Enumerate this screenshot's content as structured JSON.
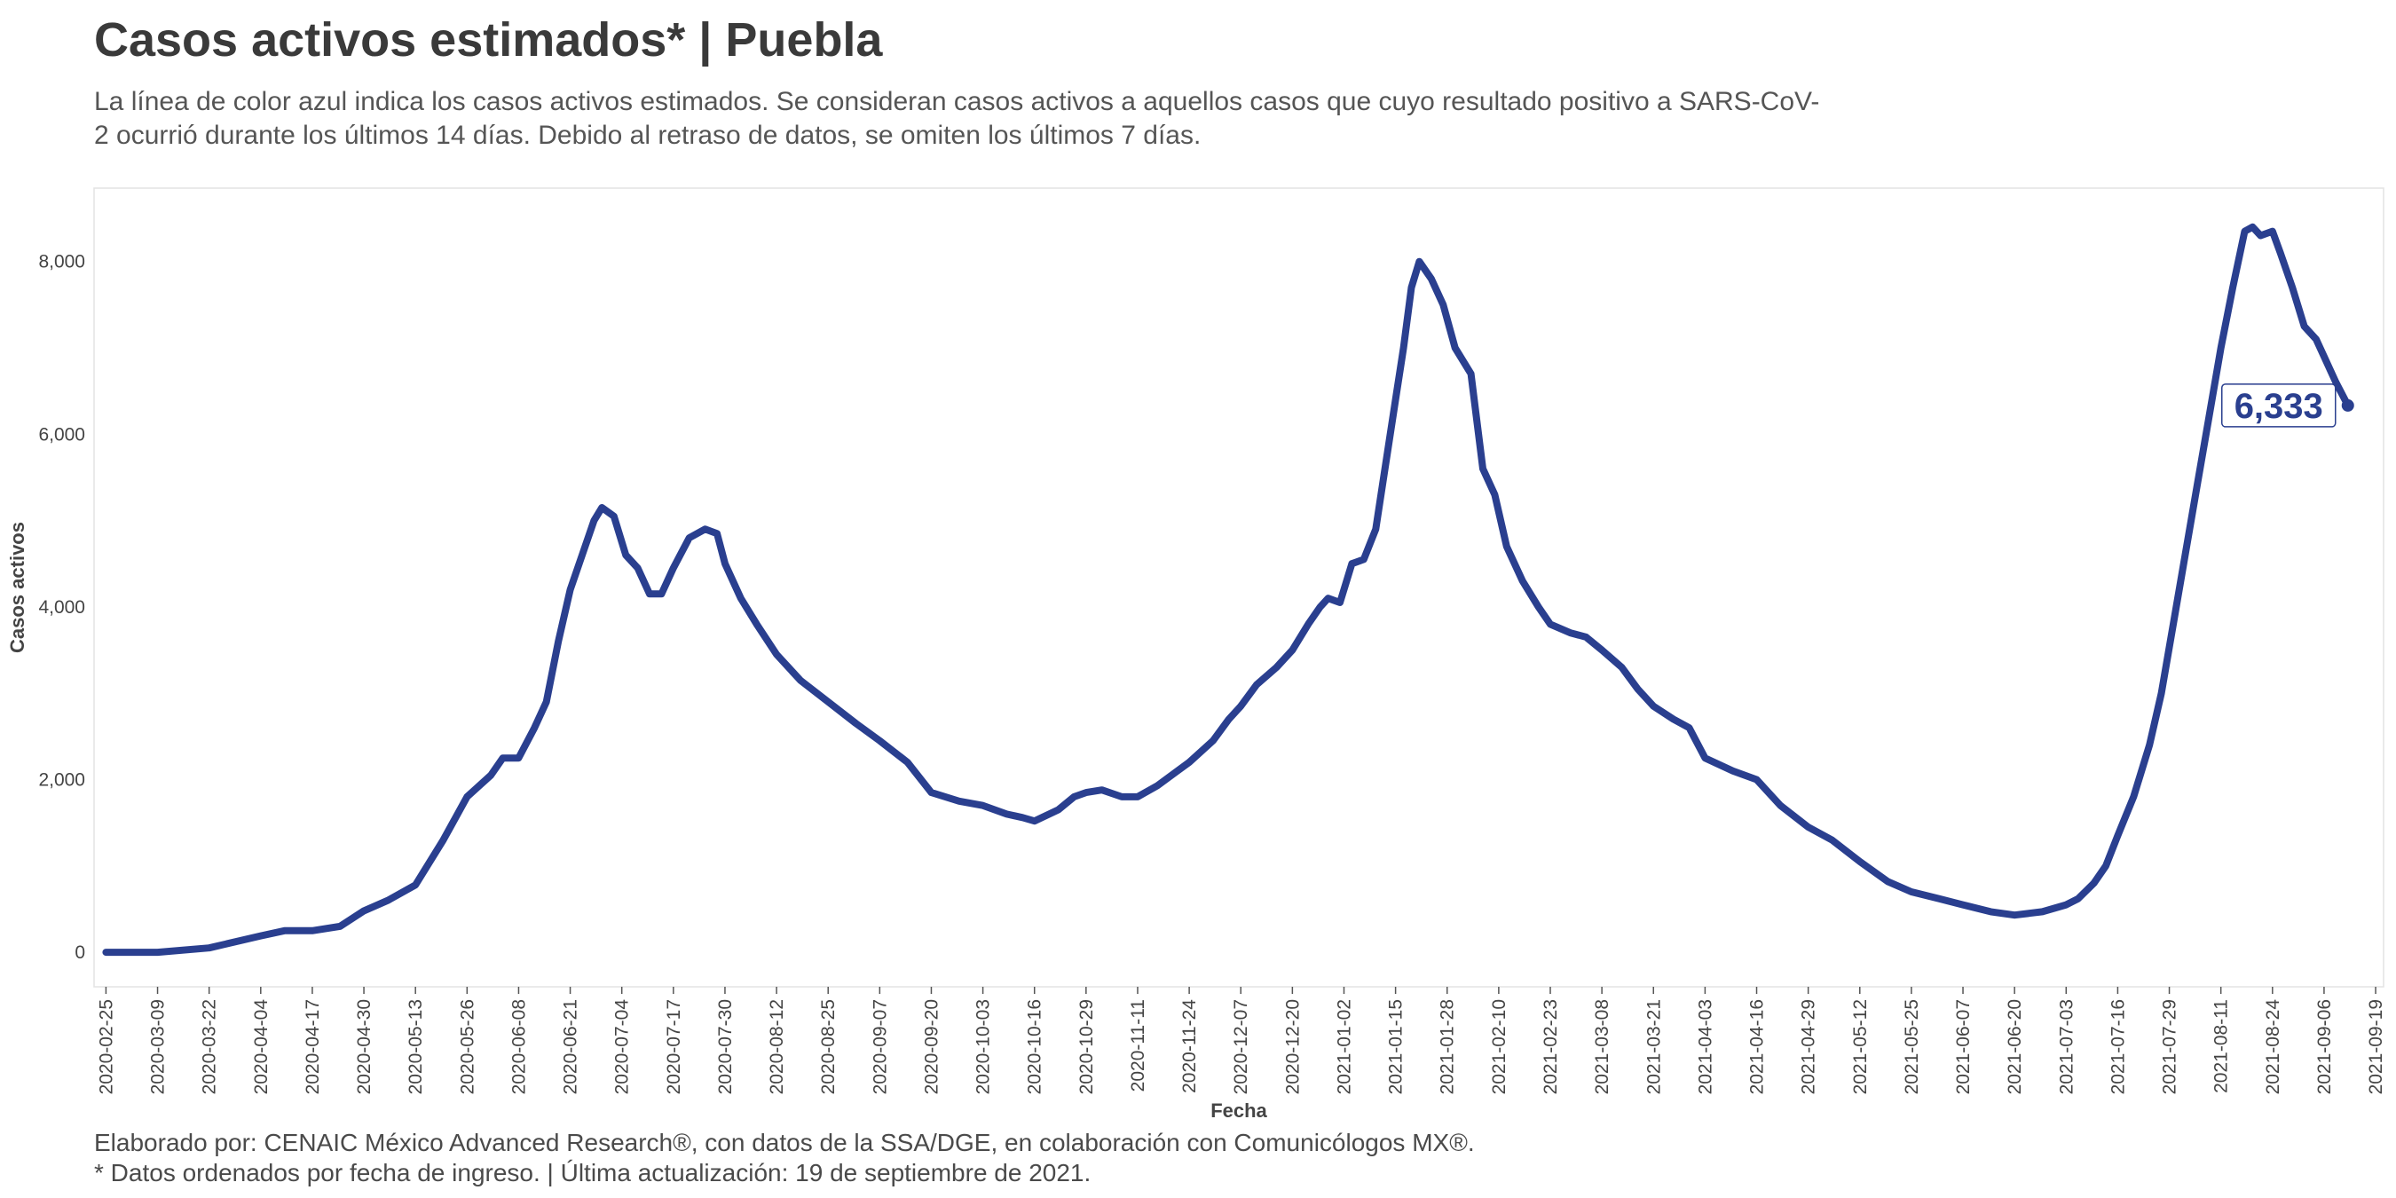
{
  "title": "Casos activos estimados* | Puebla",
  "subtitle": "La línea de color azul indica los casos activos estimados. Se consideran casos activos a aquellos casos que cuyo resultado positivo a SARS-CoV-2 ocurrió durante los últimos 14 días. Debido al retraso de datos, se omiten los últimos 7 días.",
  "caption_1": "Elaborado por: CENAIC México Advanced Research®, con datos de la SSA/DGE, en colaboración con Comunicólogos MX®.",
  "caption_2": "* Datos ordenados por fecha de ingreso. | Última actualización: 19 de septiembre de 2021.",
  "colors": {
    "line": "#2a3f8f",
    "frame": "#e3e3e3",
    "text": "#404040"
  },
  "chart_data": {
    "type": "line",
    "xlabel": "Fecha",
    "ylabel": "Casos activos",
    "xlim": [
      "2020-02-22",
      "2021-09-21"
    ],
    "ylim": [
      -400,
      8850
    ],
    "grid": false,
    "y_ticks": [
      0,
      2000,
      4000,
      6000,
      8000
    ],
    "y_tick_labels": [
      "0",
      "2,000",
      "4,000",
      "6,000",
      "8,000"
    ],
    "x_ticks": [
      "2020-02-25",
      "2020-03-09",
      "2020-03-22",
      "2020-04-04",
      "2020-04-17",
      "2020-04-30",
      "2020-05-13",
      "2020-05-26",
      "2020-06-08",
      "2020-06-21",
      "2020-07-04",
      "2020-07-17",
      "2020-07-30",
      "2020-08-12",
      "2020-08-25",
      "2020-09-07",
      "2020-09-20",
      "2020-10-03",
      "2020-10-16",
      "2020-10-29",
      "2020-11-11",
      "2020-11-24",
      "2020-12-07",
      "2020-12-20",
      "2021-01-02",
      "2021-01-15",
      "2021-01-28",
      "2021-02-10",
      "2021-02-23",
      "2021-03-08",
      "2021-03-21",
      "2021-04-03",
      "2021-04-16",
      "2021-04-29",
      "2021-05-12",
      "2021-05-25",
      "2021-06-07",
      "2021-06-20",
      "2021-07-03",
      "2021-07-16",
      "2021-07-29",
      "2021-08-11",
      "2021-08-24",
      "2021-09-06",
      "2021-09-19"
    ],
    "last_value_label": "6,333",
    "series": [
      {
        "x": [
          "2020-02-25",
          "2020-03-09",
          "2020-03-22",
          "2020-04-04",
          "2020-04-10",
          "2020-04-17",
          "2020-04-24",
          "2020-04-30",
          "2020-05-06",
          "2020-05-13",
          "2020-05-20",
          "2020-05-26",
          "2020-06-01",
          "2020-06-04",
          "2020-06-08",
          "2020-06-12",
          "2020-06-15",
          "2020-06-18",
          "2020-06-21",
          "2020-06-24",
          "2020-06-27",
          "2020-06-29",
          "2020-07-02",
          "2020-07-05",
          "2020-07-08",
          "2020-07-11",
          "2020-07-14",
          "2020-07-17",
          "2020-07-21",
          "2020-07-25",
          "2020-07-28",
          "2020-07-30",
          "2020-08-03",
          "2020-08-07",
          "2020-08-12",
          "2020-08-18",
          "2020-08-25",
          "2020-09-01",
          "2020-09-07",
          "2020-09-14",
          "2020-09-20",
          "2020-09-27",
          "2020-10-03",
          "2020-10-09",
          "2020-10-13",
          "2020-10-16",
          "2020-10-22",
          "2020-10-26",
          "2020-10-29",
          "2020-11-02",
          "2020-11-07",
          "2020-11-11",
          "2020-11-16",
          "2020-11-21",
          "2020-11-24",
          "2020-11-30",
          "2020-12-04",
          "2020-12-07",
          "2020-12-11",
          "2020-12-16",
          "2020-12-20",
          "2020-12-24",
          "2020-12-27",
          "2020-12-29",
          "2021-01-01",
          "2021-01-04",
          "2021-01-07",
          "2021-01-10",
          "2021-01-12",
          "2021-01-15",
          "2021-01-17",
          "2021-01-19",
          "2021-01-21",
          "2021-01-24",
          "2021-01-27",
          "2021-01-30",
          "2021-02-03",
          "2021-02-06",
          "2021-02-09",
          "2021-02-12",
          "2021-02-16",
          "2021-02-20",
          "2021-02-23",
          "2021-02-28",
          "2021-03-04",
          "2021-03-08",
          "2021-03-13",
          "2021-03-17",
          "2021-03-21",
          "2021-03-26",
          "2021-03-30",
          "2021-04-03",
          "2021-04-10",
          "2021-04-16",
          "2021-04-22",
          "2021-04-29",
          "2021-05-05",
          "2021-05-12",
          "2021-05-19",
          "2021-05-25",
          "2021-06-01",
          "2021-06-07",
          "2021-06-14",
          "2021-06-20",
          "2021-06-27",
          "2021-07-03",
          "2021-07-06",
          "2021-07-10",
          "2021-07-13",
          "2021-07-16",
          "2021-07-20",
          "2021-07-24",
          "2021-07-27",
          "2021-07-30",
          "2021-08-02",
          "2021-08-05",
          "2021-08-08",
          "2021-08-11",
          "2021-08-14",
          "2021-08-17",
          "2021-08-19",
          "2021-08-21",
          "2021-08-24",
          "2021-08-26",
          "2021-08-29",
          "2021-09-01",
          "2021-09-04",
          "2021-09-06",
          "2021-09-09",
          "2021-09-12"
        ],
        "y": [
          0,
          0,
          50,
          190,
          250,
          250,
          300,
          480,
          600,
          780,
          1300,
          1800,
          2050,
          2250,
          2250,
          2600,
          2900,
          3600,
          4200,
          4600,
          5000,
          5150,
          5050,
          4600,
          4450,
          4150,
          4150,
          4450,
          4800,
          4900,
          4850,
          4500,
          4100,
          3800,
          3450,
          3150,
          2900,
          2650,
          2450,
          2200,
          1850,
          1750,
          1700,
          1600,
          1560,
          1520,
          1650,
          1800,
          1850,
          1880,
          1800,
          1800,
          1930,
          2100,
          2200,
          2450,
          2700,
          2850,
          3100,
          3300,
          3500,
          3800,
          4000,
          4100,
          4050,
          4500,
          4550,
          4900,
          5500,
          6400,
          7000,
          7700,
          8000,
          7800,
          7500,
          7000,
          6700,
          5600,
          5300,
          4700,
          4300,
          4000,
          3800,
          3700,
          3650,
          3500,
          3300,
          3050,
          2850,
          2700,
          2600,
          2250,
          2100,
          2000,
          1700,
          1450,
          1300,
          1050,
          820,
          700,
          620,
          550,
          470,
          430,
          470,
          550,
          620,
          800,
          1000,
          1350,
          1800,
          2400,
          3000,
          3800,
          4600,
          5400,
          6200,
          7000,
          7700,
          8350,
          8400,
          8300,
          8350,
          8100,
          7700,
          7250,
          7100,
          6900,
          6600,
          6333
        ]
      }
    ]
  }
}
